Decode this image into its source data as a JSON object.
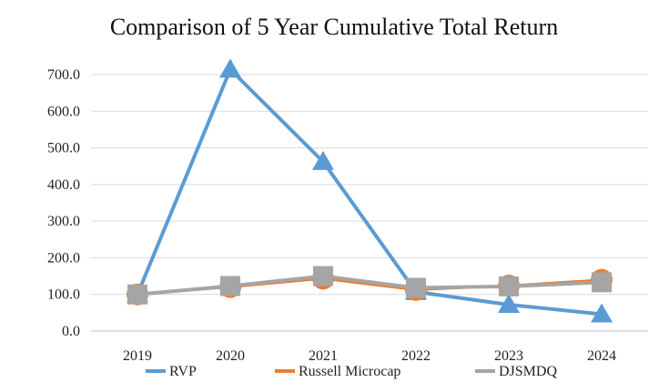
{
  "chart_data": {
    "type": "line",
    "title": "Comparison of 5 Year Cumulative Total Return",
    "xlabel": "",
    "ylabel": "",
    "categories": [
      "2019",
      "2020",
      "2021",
      "2022",
      "2023",
      "2024"
    ],
    "ylim": [
      0,
      700
    ],
    "yticks": [
      "0.0",
      "100.0",
      "200.0",
      "300.0",
      "400.0",
      "500.0",
      "600.0",
      "700.0"
    ],
    "grid": true,
    "legend_position": "bottom",
    "series": [
      {
        "name": "RVP",
        "values": [
          100,
          714,
          462,
          107,
          72,
          46
        ],
        "color": "#5b9bd5",
        "marker": "triangle"
      },
      {
        "name": "Russell Microcap",
        "values": [
          100,
          120,
          143,
          112,
          124,
          140
        ],
        "color": "#ed7d31",
        "marker": "circle"
      },
      {
        "name": "DJSMDQ",
        "values": [
          100,
          123,
          150,
          118,
          122,
          133
        ],
        "color": "#a5a5a5",
        "marker": "square"
      }
    ]
  }
}
